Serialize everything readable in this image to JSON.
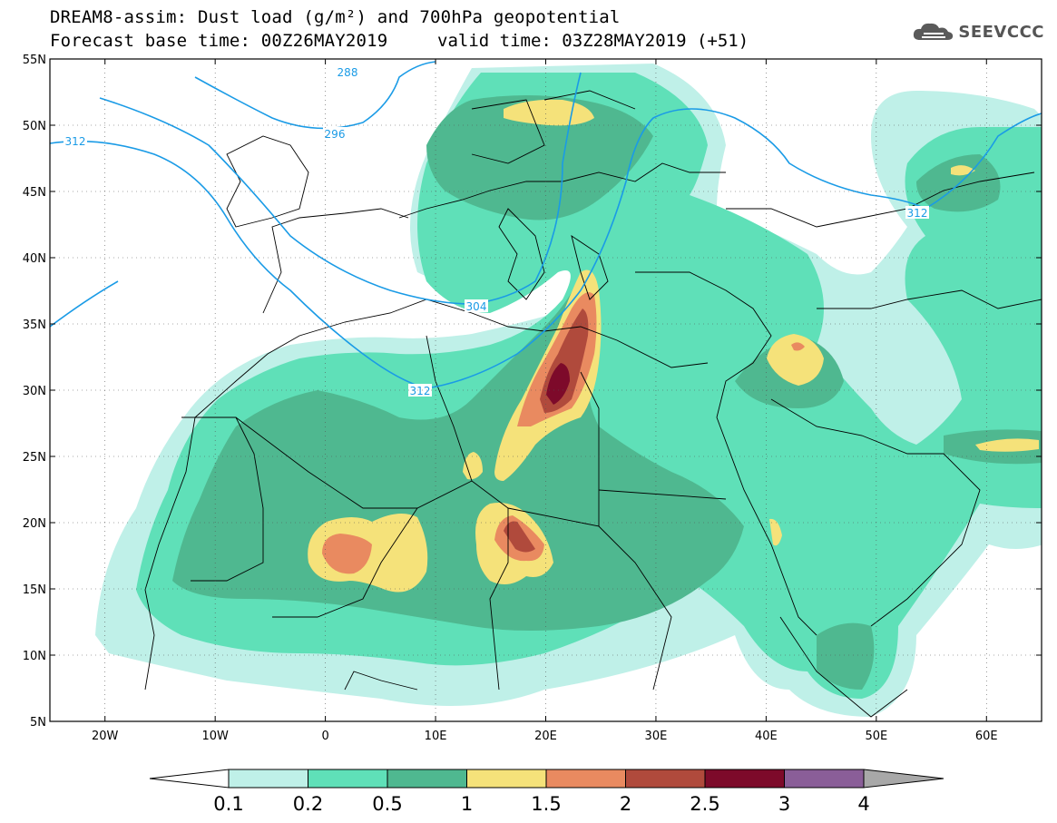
{
  "header": {
    "title_line1": "DREAM8-assim: Dust load (g/m²) and 700hPa geopotential",
    "title_line2": "Forecast base time: 00Z26MAY2019",
    "valid_time": "valid time: 03Z28MAY2019 (+51)",
    "logo_text": "SEEVCCC"
  },
  "map": {
    "lon_range": [
      -25,
      65
    ],
    "lat_range": [
      5,
      55
    ],
    "lat_ticks": [
      "55N",
      "50N",
      "45N",
      "40N",
      "35N",
      "30N",
      "25N",
      "20N",
      "15N",
      "10N",
      "5N"
    ],
    "lat_values": [
      55,
      50,
      45,
      40,
      35,
      30,
      25,
      20,
      15,
      10,
      5
    ],
    "lon_ticks": [
      "20W",
      "10W",
      "0",
      "10E",
      "20E",
      "30E",
      "40E",
      "50E",
      "60E"
    ],
    "lon_values": [
      -20,
      -10,
      0,
      10,
      20,
      30,
      40,
      50,
      60
    ],
    "contour_labels": [
      "288",
      "296",
      "312",
      "304",
      "312",
      "312"
    ],
    "colors": {
      "c01": "#bff0e8",
      "c02": "#5fe0b8",
      "c05": "#4fb890",
      "c1": "#f5e27a",
      "c15": "#e98a60",
      "c2": "#b04a3c",
      "c25": "#7d0a2a",
      "c3": "#8a5e98",
      "c4": "#a8a8a8",
      "contour": "#1a9be6"
    }
  },
  "colorbar": {
    "labels": [
      "0.1",
      "0.2",
      "0.5",
      "1",
      "1.5",
      "2",
      "2.5",
      "3",
      "4"
    ],
    "colors": [
      "#bff0e8",
      "#5fe0b8",
      "#4fb890",
      "#f5e27a",
      "#e98a60",
      "#b04a3c",
      "#7d0a2a",
      "#8a5e98"
    ]
  }
}
